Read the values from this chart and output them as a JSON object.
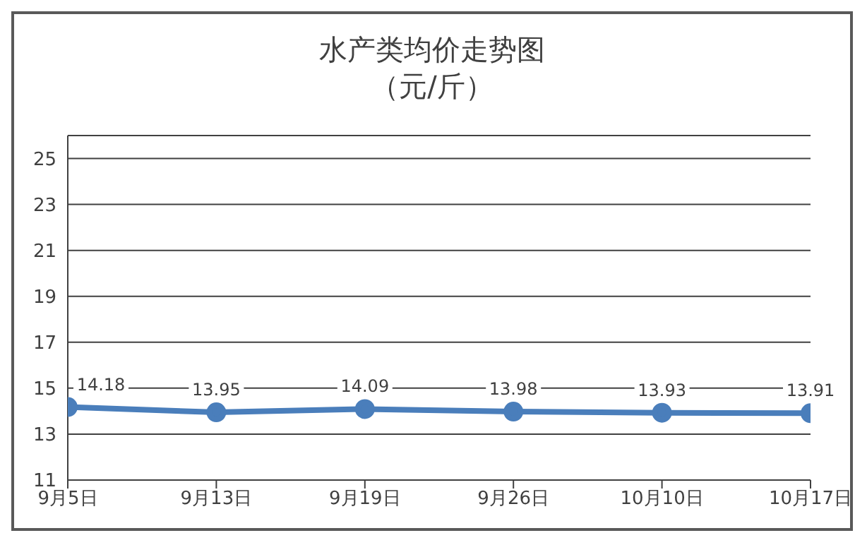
{
  "chart_data": {
    "type": "line",
    "title": "水产类均价走势图",
    "subtitle": "（元/斤）",
    "categories": [
      "9月5日",
      "9月13日",
      "9月19日",
      "9月26日",
      "10月10日",
      "10月17日"
    ],
    "series": [
      {
        "color": "#4a7ebb",
        "values": [
          14.18,
          13.95,
          14.09,
          13.98,
          13.93,
          13.91
        ]
      }
    ],
    "ylim": [
      11,
      26
    ],
    "yticks": [
      11,
      13,
      15,
      17,
      19,
      21,
      23,
      25
    ],
    "grid": "y",
    "marker": "circle",
    "line_style": "solid",
    "data_labels": true,
    "legend": false
  }
}
